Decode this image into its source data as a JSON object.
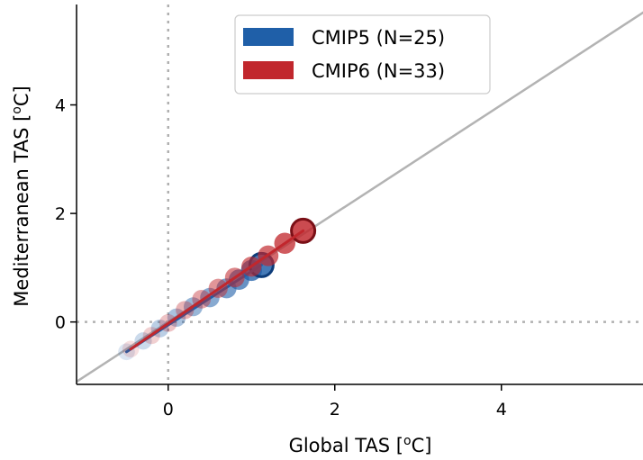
{
  "chart_data": {
    "type": "scatter",
    "xlabel": "Global TAS [",
    "xlabel_unit_sup": "o",
    "xlabel_unit_tail": "C]",
    "ylabel": "Mediterranean TAS [",
    "ylabel_unit_sup": "o",
    "ylabel_unit_tail": "C]",
    "xlim": [
      -1.1,
      5.7
    ],
    "ylim": [
      -1.15,
      5.85
    ],
    "xticks": [
      0,
      2,
      4
    ],
    "yticks": [
      0,
      2,
      4
    ],
    "xtick_labels": [
      "0",
      "2",
      "4"
    ],
    "ytick_labels": [
      "0",
      "2",
      "4"
    ],
    "reference_lines": {
      "x_zero": true,
      "y_zero": true,
      "one_to_one": true
    },
    "legend_position": "top-center",
    "series": [
      {
        "name": "CMIP5 (N=25)",
        "color": "#1f5fa8",
        "points": [
          {
            "x": -0.5,
            "y": -0.55
          },
          {
            "x": -0.3,
            "y": -0.35
          },
          {
            "x": -0.1,
            "y": -0.12
          },
          {
            "x": 0.1,
            "y": 0.08
          },
          {
            "x": 0.3,
            "y": 0.28
          },
          {
            "x": 0.5,
            "y": 0.45
          },
          {
            "x": 0.7,
            "y": 0.62
          },
          {
            "x": 0.85,
            "y": 0.78
          },
          {
            "x": 1.0,
            "y": 0.95
          },
          {
            "x": 1.12,
            "y": 1.05
          }
        ],
        "trend": {
          "x": [
            -0.5,
            1.12
          ],
          "y": [
            -0.55,
            1.05
          ]
        }
      },
      {
        "name": "CMIP6 (N=33)",
        "color": "#c1272d",
        "points": [
          {
            "x": -0.45,
            "y": -0.5
          },
          {
            "x": -0.2,
            "y": -0.25
          },
          {
            "x": 0.0,
            "y": -0.02
          },
          {
            "x": 0.2,
            "y": 0.22
          },
          {
            "x": 0.4,
            "y": 0.42
          },
          {
            "x": 0.6,
            "y": 0.62
          },
          {
            "x": 0.8,
            "y": 0.82
          },
          {
            "x": 1.0,
            "y": 1.02
          },
          {
            "x": 1.2,
            "y": 1.22
          },
          {
            "x": 1.4,
            "y": 1.45
          },
          {
            "x": 1.62,
            "y": 1.68
          }
        ],
        "trend": {
          "x": [
            -0.45,
            1.62
          ],
          "y": [
            -0.5,
            1.68
          ]
        }
      }
    ]
  }
}
